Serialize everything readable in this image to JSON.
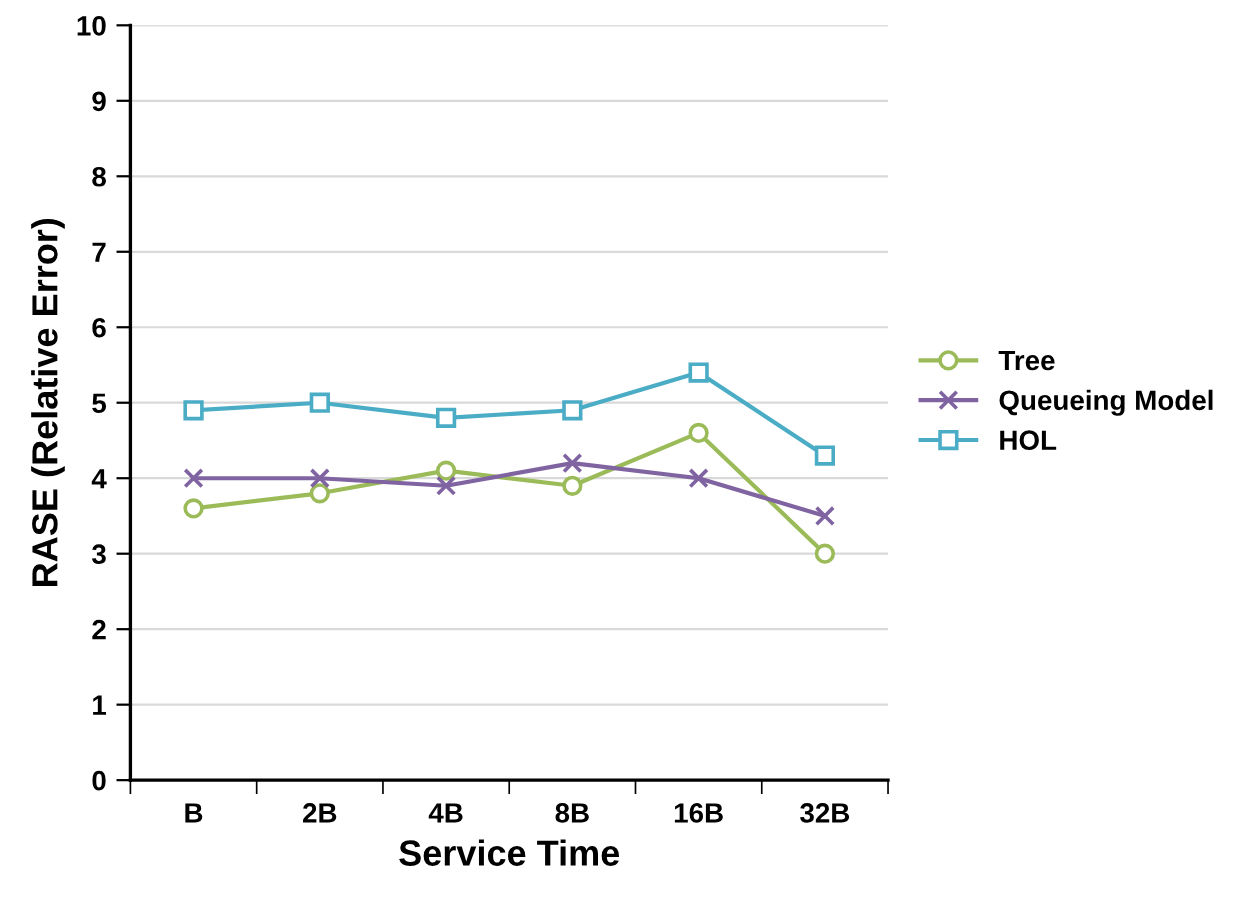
{
  "chart_data": {
    "type": "line",
    "xlabel": "Service Time",
    "ylabel": "RASE (Relative Error)",
    "categories": [
      "B",
      "2B",
      "4B",
      "8B",
      "16B",
      "32B"
    ],
    "series": [
      {
        "name": "Tree",
        "color": "#9bbb59",
        "marker": "circle",
        "values": [
          3.6,
          3.8,
          4.1,
          3.9,
          4.6,
          3.0
        ]
      },
      {
        "name": "Queueing Model",
        "color": "#8064a2",
        "marker": "cross",
        "values": [
          4.0,
          4.0,
          3.9,
          4.2,
          4.0,
          3.5
        ]
      },
      {
        "name": "HOL",
        "color": "#4bacc6",
        "marker": "square",
        "values": [
          4.9,
          5.0,
          4.8,
          4.9,
          5.4,
          4.3
        ]
      }
    ],
    "ylim": [
      0,
      10
    ],
    "yticks": [
      0,
      1,
      2,
      3,
      4,
      5,
      6,
      7,
      8,
      9,
      10
    ],
    "grid": "y",
    "legend": "right",
    "line_style": "solid"
  }
}
